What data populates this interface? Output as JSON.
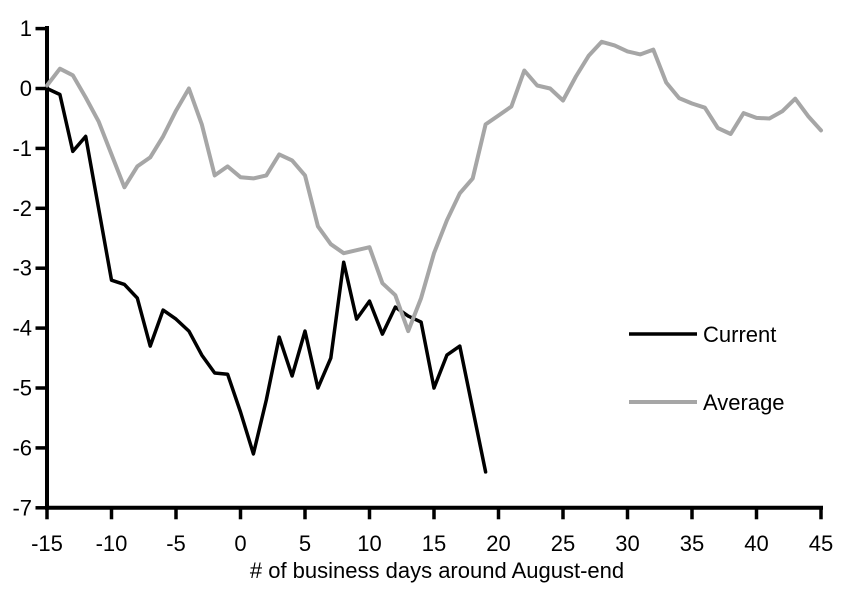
{
  "chart_data": {
    "type": "line",
    "title": "",
    "xlabel": "# of business days around August-end",
    "ylabel": "",
    "xlim": [
      -15,
      45
    ],
    "ylim": [
      -7,
      1
    ],
    "x_ticks": [
      -15,
      -10,
      -5,
      0,
      5,
      10,
      15,
      20,
      25,
      30,
      35,
      40,
      45
    ],
    "y_ticks": [
      1,
      0,
      -1,
      -2,
      -3,
      -4,
      -5,
      -6,
      -7
    ],
    "grid": false,
    "background": "#ffffff",
    "axis_color": "#000000",
    "legend_position": "right-middle",
    "x": [
      -15,
      -14,
      -13,
      -12,
      -11,
      -10,
      -9,
      -8,
      -7,
      -6,
      -5,
      -4,
      -3,
      -2,
      -1,
      0,
      1,
      2,
      3,
      4,
      5,
      6,
      7,
      8,
      9,
      10,
      11,
      12,
      13,
      14,
      15,
      16,
      17,
      18,
      19,
      20,
      21,
      22,
      23,
      24,
      25,
      26,
      27,
      28,
      29,
      30,
      31,
      32,
      33,
      34,
      35,
      36,
      37,
      38,
      39,
      40,
      41,
      42,
      43,
      44,
      45
    ],
    "series": [
      {
        "name": "Current",
        "color": "#000000",
        "values": [
          0,
          -0.1,
          -1.05,
          -0.8,
          -2,
          -3.2,
          -3.27,
          -3.5,
          -4.3,
          -3.7,
          -3.85,
          -4.05,
          -4.45,
          -4.75,
          -4.77,
          -5.4,
          -6.1,
          -5.2,
          -4.15,
          -4.8,
          -4.05,
          -5,
          -4.5,
          -2.9,
          -3.85,
          -3.55,
          -4.1,
          -3.65,
          -3.8,
          -3.9,
          -5,
          -4.45,
          -4.3,
          -5.35,
          -6.4
        ]
      },
      {
        "name": "Average",
        "color": "#a6a6a6",
        "values": [
          0.05,
          0.33,
          0.22,
          -0.15,
          -0.55,
          -1.1,
          -1.65,
          -1.3,
          -1.15,
          -0.8,
          -0.37,
          0,
          -0.6,
          -1.45,
          -1.3,
          -1.48,
          -1.5,
          -1.45,
          -1.1,
          -1.2,
          -1.45,
          -2.3,
          -2.6,
          -2.75,
          -2.7,
          -2.65,
          -3.25,
          -3.45,
          -4.05,
          -3.5,
          -2.75,
          -2.2,
          -1.75,
          -1.5,
          -0.6,
          -0.45,
          -0.3,
          0.3,
          0.05,
          0,
          -0.2,
          0.2,
          0.55,
          0.78,
          0.72,
          0.62,
          0.57,
          0.65,
          0.1,
          -0.16,
          -0.25,
          -0.32,
          -0.66,
          -0.76,
          -0.41,
          -0.49,
          -0.5,
          -0.38,
          -0.17,
          -0.46,
          -0.7
        ]
      }
    ]
  }
}
